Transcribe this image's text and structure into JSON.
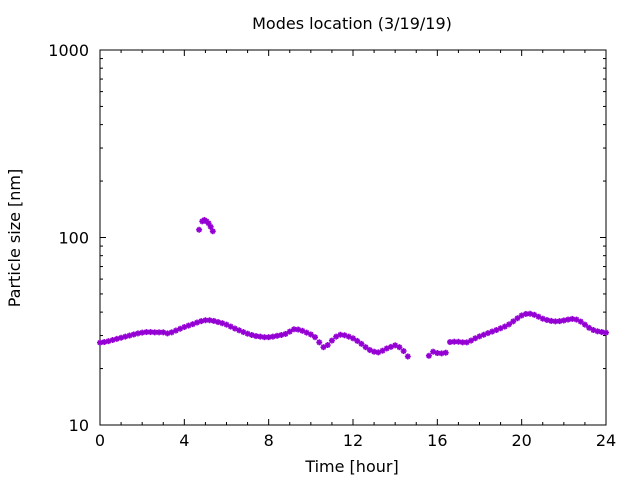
{
  "chart_data": {
    "type": "scatter",
    "title": "Modes location (3/19/19)",
    "xlabel": "Time [hour]",
    "ylabel": "Particle size [nm]",
    "xlim": [
      0,
      24
    ],
    "ylim": [
      10,
      1000
    ],
    "yscale": "log",
    "xticks": [
      0,
      4,
      8,
      12,
      16,
      20,
      24
    ],
    "yticks": [
      10,
      100,
      1000
    ],
    "xtick_labels": [
      "0",
      "4",
      "8",
      "12",
      "16",
      "20",
      "24"
    ],
    "ytick_labels": [
      "10",
      "100",
      "1000"
    ],
    "grid": false,
    "legend": "none",
    "marker_color": "#9400D3",
    "series": [
      {
        "points": [
          [
            0.0,
            27.5
          ],
          [
            0.2,
            27.7
          ],
          [
            0.4,
            28.0
          ],
          [
            0.6,
            28.4
          ],
          [
            0.8,
            28.8
          ],
          [
            1.0,
            29.2
          ],
          [
            1.2,
            29.6
          ],
          [
            1.4,
            30.0
          ],
          [
            1.6,
            30.4
          ],
          [
            1.8,
            30.8
          ],
          [
            2.0,
            31.1
          ],
          [
            2.2,
            31.3
          ],
          [
            2.4,
            31.3
          ],
          [
            2.6,
            31.2
          ],
          [
            2.8,
            31.2
          ],
          [
            3.0,
            31.2
          ],
          [
            3.2,
            30.8
          ],
          [
            3.4,
            31.2
          ],
          [
            3.6,
            31.9
          ],
          [
            3.8,
            32.6
          ],
          [
            4.0,
            33.3
          ],
          [
            4.2,
            33.9
          ],
          [
            4.4,
            34.5
          ],
          [
            4.6,
            35.2
          ],
          [
            4.8,
            35.8
          ],
          [
            5.0,
            36.2
          ],
          [
            5.2,
            36.2
          ],
          [
            5.4,
            35.9
          ],
          [
            5.6,
            35.4
          ],
          [
            5.8,
            34.9
          ],
          [
            6.0,
            34.3
          ],
          [
            6.2,
            33.5
          ],
          [
            6.4,
            32.7
          ],
          [
            6.6,
            32.0
          ],
          [
            6.8,
            31.3
          ],
          [
            7.0,
            30.7
          ],
          [
            7.2,
            30.2
          ],
          [
            7.4,
            29.8
          ],
          [
            7.6,
            29.6
          ],
          [
            7.8,
            29.4
          ],
          [
            8.0,
            29.4
          ],
          [
            8.2,
            29.6
          ],
          [
            8.4,
            29.9
          ],
          [
            8.6,
            30.2
          ],
          [
            8.8,
            30.6
          ],
          [
            9.0,
            31.5
          ],
          [
            9.2,
            32.4
          ],
          [
            9.4,
            32.3
          ],
          [
            9.6,
            31.8
          ],
          [
            9.8,
            31.1
          ],
          [
            10.0,
            30.4
          ],
          [
            10.2,
            29.4
          ],
          [
            10.4,
            27.6
          ],
          [
            10.6,
            26.0
          ],
          [
            10.8,
            26.7
          ],
          [
            11.0,
            28.2
          ],
          [
            11.2,
            29.6
          ],
          [
            11.4,
            30.3
          ],
          [
            11.6,
            30.1
          ],
          [
            11.8,
            29.6
          ],
          [
            12.0,
            29.0
          ],
          [
            12.2,
            28.1
          ],
          [
            12.4,
            27.1
          ],
          [
            12.6,
            26.0
          ],
          [
            12.8,
            25.1
          ],
          [
            13.0,
            24.6
          ],
          [
            13.2,
            24.4
          ],
          [
            13.4,
            24.9
          ],
          [
            13.6,
            25.6
          ],
          [
            13.8,
            26.1
          ],
          [
            14.0,
            26.6
          ],
          [
            14.2,
            26.0
          ],
          [
            14.4,
            24.8
          ],
          [
            14.6,
            23.2
          ],
          [
            15.6,
            23.4
          ],
          [
            15.8,
            24.6
          ],
          [
            16.0,
            24.2
          ],
          [
            16.2,
            24.1
          ],
          [
            16.4,
            24.3
          ],
          [
            16.6,
            27.7
          ],
          [
            16.8,
            27.8
          ],
          [
            17.0,
            27.8
          ],
          [
            17.2,
            27.6
          ],
          [
            17.4,
            27.6
          ],
          [
            17.6,
            28.2
          ],
          [
            17.8,
            29.0
          ],
          [
            18.0,
            29.7
          ],
          [
            18.2,
            30.3
          ],
          [
            18.4,
            30.9
          ],
          [
            18.6,
            31.5
          ],
          [
            18.8,
            32.1
          ],
          [
            19.0,
            32.8
          ],
          [
            19.2,
            33.5
          ],
          [
            19.4,
            34.4
          ],
          [
            19.6,
            35.7
          ],
          [
            19.8,
            37.1
          ],
          [
            20.0,
            38.4
          ],
          [
            20.2,
            39.1
          ],
          [
            20.4,
            39.2
          ],
          [
            20.6,
            38.7
          ],
          [
            20.8,
            37.8
          ],
          [
            21.0,
            36.9
          ],
          [
            21.2,
            36.3
          ],
          [
            21.4,
            35.9
          ],
          [
            21.6,
            35.7
          ],
          [
            21.8,
            35.8
          ],
          [
            22.0,
            36.1
          ],
          [
            22.2,
            36.5
          ],
          [
            22.4,
            36.8
          ],
          [
            22.6,
            36.5
          ],
          [
            22.8,
            35.6
          ],
          [
            23.0,
            34.3
          ],
          [
            23.2,
            33.0
          ],
          [
            23.4,
            32.1
          ],
          [
            23.6,
            31.6
          ],
          [
            23.8,
            31.3
          ],
          [
            24.0,
            31.1
          ],
          [
            4.7,
            110.0
          ],
          [
            4.85,
            122.0
          ],
          [
            4.95,
            124.0
          ],
          [
            5.05,
            122.0
          ],
          [
            5.15,
            119.0
          ],
          [
            5.25,
            114.0
          ],
          [
            5.35,
            108.0
          ]
        ]
      }
    ]
  }
}
